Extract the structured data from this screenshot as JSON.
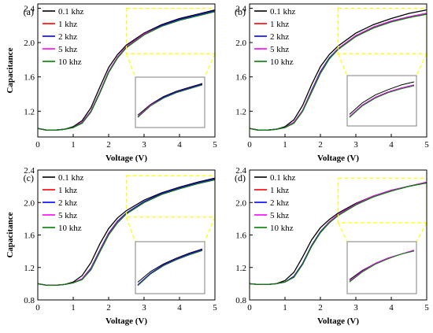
{
  "figure": {
    "series_styles": [
      {
        "name": "0.1 khz",
        "color": "#000000"
      },
      {
        "name": "1 khz",
        "color": "#ff0000"
      },
      {
        "name": "2 khz",
        "color": "#0000ff"
      },
      {
        "name": "5 khz",
        "color": "#ff00ff"
      },
      {
        "name": "10 khz",
        "color": "#008000"
      }
    ],
    "inset_frame_color": "#808080",
    "zoom_box_color": "#ffff00"
  },
  "chart_data": [
    {
      "type": "line",
      "panel_label": "(a)",
      "xlabel": "Voltage (V)",
      "ylabel": "Capacitance",
      "xlim": [
        0,
        5
      ],
      "ylim": [
        0.9,
        2.45
      ],
      "xticks": [
        "0",
        "1",
        "2",
        "3",
        "4",
        "5"
      ],
      "yticks": [
        "1.2",
        "1.6",
        "2.0",
        "2.4"
      ],
      "ytick_values": [
        1.2,
        1.6,
        2.0,
        2.4
      ],
      "legend_position": "top-left",
      "zoom_region": {
        "x": [
          2.5,
          5
        ],
        "y": [
          1.87,
          2.4
        ]
      },
      "x": [
        0,
        0.25,
        0.5,
        0.75,
        1.0,
        1.25,
        1.5,
        1.75,
        2.0,
        2.25,
        2.5,
        3.0,
        3.5,
        4.0,
        4.5,
        5.0
      ],
      "series": [
        {
          "name": "0.1 khz",
          "values": [
            1.0,
            0.98,
            0.98,
            0.99,
            1.02,
            1.09,
            1.24,
            1.48,
            1.71,
            1.86,
            1.97,
            2.11,
            2.21,
            2.28,
            2.33,
            2.38
          ]
        },
        {
          "name": "1 khz",
          "values": [
            1.0,
            0.98,
            0.98,
            0.99,
            1.01,
            1.07,
            1.2,
            1.42,
            1.66,
            1.83,
            1.95,
            2.1,
            2.2,
            2.27,
            2.32,
            2.37
          ]
        },
        {
          "name": "2 khz",
          "values": [
            1.0,
            0.98,
            0.98,
            0.99,
            1.01,
            1.07,
            1.2,
            1.42,
            1.66,
            1.83,
            1.95,
            2.1,
            2.2,
            2.27,
            2.32,
            2.37
          ]
        },
        {
          "name": "5 khz",
          "values": [
            1.0,
            0.98,
            0.98,
            0.99,
            1.01,
            1.07,
            1.2,
            1.42,
            1.66,
            1.83,
            1.95,
            2.1,
            2.19,
            2.26,
            2.31,
            2.36
          ]
        },
        {
          "name": "10 khz",
          "values": [
            1.0,
            0.98,
            0.98,
            0.99,
            1.01,
            1.06,
            1.19,
            1.41,
            1.65,
            1.82,
            1.94,
            2.09,
            2.19,
            2.26,
            2.31,
            2.36
          ]
        }
      ]
    },
    {
      "type": "line",
      "panel_label": "(b)",
      "xlabel": "Voltage (V)",
      "ylabel": "",
      "xlim": [
        0,
        5
      ],
      "ylim": [
        0.9,
        2.45
      ],
      "xticks": [
        "0",
        "1",
        "2",
        "3",
        "4",
        "5"
      ],
      "yticks": [
        "1.2",
        "1.6",
        "2.0",
        "2.4"
      ],
      "ytick_values": [
        1.2,
        1.6,
        2.0,
        2.4
      ],
      "legend_position": "top-left",
      "zoom_region": {
        "x": [
          2.5,
          5
        ],
        "y": [
          1.87,
          2.4
        ]
      },
      "x": [
        0,
        0.25,
        0.5,
        0.75,
        1.0,
        1.25,
        1.5,
        1.75,
        2.0,
        2.25,
        2.5,
        3.0,
        3.5,
        4.0,
        4.5,
        5.0
      ],
      "series": [
        {
          "name": "0.1 khz",
          "values": [
            1.0,
            0.98,
            0.98,
            0.99,
            1.02,
            1.1,
            1.27,
            1.51,
            1.72,
            1.86,
            1.96,
            2.11,
            2.21,
            2.28,
            2.34,
            2.38
          ]
        },
        {
          "name": "1 khz",
          "values": [
            1.0,
            0.98,
            0.98,
            0.99,
            1.01,
            1.07,
            1.21,
            1.44,
            1.66,
            1.82,
            1.93,
            2.08,
            2.18,
            2.25,
            2.3,
            2.34
          ]
        },
        {
          "name": "2 khz",
          "values": [
            1.0,
            0.98,
            0.98,
            0.99,
            1.01,
            1.07,
            1.21,
            1.44,
            1.66,
            1.82,
            1.93,
            2.08,
            2.18,
            2.25,
            2.3,
            2.34
          ]
        },
        {
          "name": "5 khz",
          "values": [
            1.0,
            0.98,
            0.98,
            0.99,
            1.01,
            1.07,
            1.21,
            1.43,
            1.65,
            1.81,
            1.93,
            2.08,
            2.18,
            2.25,
            2.3,
            2.34
          ]
        },
        {
          "name": "10 khz",
          "values": [
            1.0,
            0.98,
            0.98,
            0.99,
            1.01,
            1.06,
            1.2,
            1.42,
            1.64,
            1.81,
            1.92,
            2.07,
            2.17,
            2.24,
            2.29,
            2.33
          ]
        }
      ]
    },
    {
      "type": "line",
      "panel_label": "(c)",
      "xlabel": "Voltage (V)",
      "ylabel": "Capacitance",
      "xlim": [
        0,
        5
      ],
      "ylim": [
        0.8,
        2.4
      ],
      "xticks": [
        "0",
        "1",
        "2",
        "3",
        "4",
        "5"
      ],
      "yticks": [
        "0.8",
        "1.2",
        "1.6",
        "2.0",
        "2.4"
      ],
      "ytick_values": [
        0.8,
        1.2,
        1.6,
        2.0,
        2.4
      ],
      "legend_position": "top-left",
      "zoom_region": {
        "x": [
          2.5,
          5
        ],
        "y": [
          1.82,
          2.33
        ]
      },
      "x": [
        0,
        0.25,
        0.5,
        0.75,
        1.0,
        1.25,
        1.5,
        1.75,
        2.0,
        2.25,
        2.5,
        3.0,
        3.5,
        4.0,
        4.5,
        5.0
      ],
      "series": [
        {
          "name": "0.1 khz",
          "values": [
            1.0,
            0.98,
            0.98,
            0.99,
            1.02,
            1.1,
            1.26,
            1.49,
            1.68,
            1.81,
            1.9,
            2.03,
            2.12,
            2.19,
            2.25,
            2.3
          ]
        },
        {
          "name": "1 khz",
          "values": [
            1.0,
            0.98,
            0.98,
            0.99,
            1.01,
            1.06,
            1.19,
            1.41,
            1.62,
            1.77,
            1.87,
            2.01,
            2.11,
            2.18,
            2.24,
            2.29
          ]
        },
        {
          "name": "2 khz",
          "values": [
            1.0,
            0.98,
            0.98,
            0.99,
            1.01,
            1.06,
            1.19,
            1.41,
            1.62,
            1.77,
            1.87,
            2.01,
            2.11,
            2.18,
            2.24,
            2.29
          ]
        },
        {
          "name": "5 khz",
          "values": [
            1.0,
            0.98,
            0.98,
            0.99,
            1.01,
            1.06,
            1.18,
            1.4,
            1.61,
            1.76,
            1.86,
            2.0,
            2.1,
            2.17,
            2.23,
            2.28
          ]
        },
        {
          "name": "10 khz",
          "values": [
            1.0,
            0.98,
            0.98,
            0.99,
            1.01,
            1.05,
            1.17,
            1.39,
            1.6,
            1.75,
            1.86,
            2.0,
            2.1,
            2.17,
            2.23,
            2.28
          ]
        }
      ]
    },
    {
      "type": "line",
      "panel_label": "(d)",
      "xlabel": "Voltage (V)",
      "ylabel": "",
      "xlim": [
        0,
        5
      ],
      "ylim": [
        0.8,
        2.4
      ],
      "xticks": [
        "0",
        "1",
        "2",
        "3",
        "4",
        "5"
      ],
      "yticks": [
        "0.8",
        "1.2",
        "1.6",
        "2.0",
        "2.4"
      ],
      "ytick_values": [
        0.8,
        1.2,
        1.6,
        2.0,
        2.4
      ],
      "legend_position": "top-left",
      "zoom_region": {
        "x": [
          2.5,
          5
        ],
        "y": [
          1.75,
          2.3
        ]
      },
      "x": [
        0,
        0.25,
        0.5,
        0.75,
        1.0,
        1.25,
        1.5,
        1.75,
        2.0,
        2.25,
        2.5,
        3.0,
        3.5,
        4.0,
        4.5,
        5.0
      ],
      "series": [
        {
          "name": "0.1 khz",
          "values": [
            1.0,
            0.99,
            0.99,
            1.0,
            1.04,
            1.14,
            1.33,
            1.54,
            1.69,
            1.79,
            1.87,
            1.99,
            2.08,
            2.15,
            2.2,
            2.25
          ]
        },
        {
          "name": "1 khz",
          "values": [
            1.0,
            0.99,
            0.99,
            1.0,
            1.02,
            1.09,
            1.25,
            1.47,
            1.64,
            1.76,
            1.85,
            1.98,
            2.08,
            2.15,
            2.2,
            2.25
          ]
        },
        {
          "name": "2 khz",
          "values": [
            1.0,
            0.99,
            0.99,
            1.0,
            1.02,
            1.09,
            1.25,
            1.47,
            1.64,
            1.76,
            1.85,
            1.98,
            2.08,
            2.15,
            2.2,
            2.25
          ]
        },
        {
          "name": "5 khz",
          "values": [
            1.0,
            0.99,
            0.99,
            1.0,
            1.02,
            1.08,
            1.24,
            1.46,
            1.63,
            1.76,
            1.85,
            1.98,
            2.08,
            2.15,
            2.2,
            2.25
          ]
        },
        {
          "name": "10 khz",
          "values": [
            1.0,
            0.99,
            0.99,
            1.0,
            1.02,
            1.08,
            1.24,
            1.46,
            1.63,
            1.75,
            1.84,
            1.97,
            2.07,
            2.14,
            2.2,
            2.24
          ]
        }
      ]
    }
  ]
}
